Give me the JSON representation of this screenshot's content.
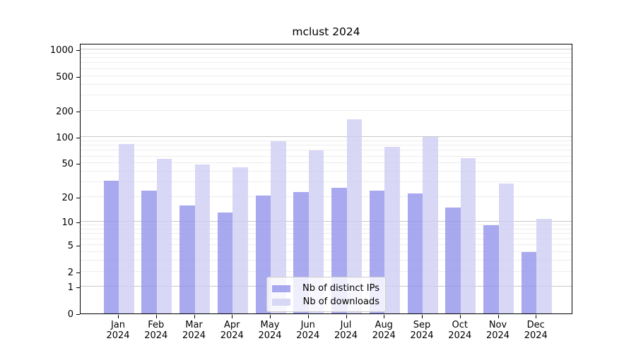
{
  "chart_data": {
    "type": "bar",
    "title": "mclust 2024",
    "categories": [
      "Jan 2024",
      "Feb 2024",
      "Mar 2024",
      "Apr 2024",
      "May 2024",
      "Jun 2024",
      "Jul 2024",
      "Aug 2024",
      "Sep 2024",
      "Oct 2024",
      "Nov 2024",
      "Dec 2024"
    ],
    "x_tick_month_labels": [
      "Jan",
      "Feb",
      "Mar",
      "Apr",
      "May",
      "Jun",
      "Jul",
      "Aug",
      "Sep",
      "Oct",
      "Nov",
      "Dec"
    ],
    "x_tick_year_label": "2024",
    "series": [
      {
        "name": "Nb of distinct IPs",
        "color": "#9494eb",
        "opacity": 0.8,
        "values": [
          31,
          24,
          16,
          13,
          21,
          23,
          26,
          24,
          22,
          15,
          9,
          4
        ]
      },
      {
        "name": "Nb of downloads",
        "color": "#cecef4",
        "opacity": 0.8,
        "values": [
          83,
          56,
          48,
          45,
          89,
          71,
          160,
          77,
          100,
          57,
          29,
          11
        ]
      }
    ],
    "y_ticks": [
      0,
      1,
      2,
      5,
      10,
      20,
      50,
      100,
      200,
      500,
      1000
    ],
    "y_scale": "log10(value+1)",
    "ylim": [
      0,
      1180
    ],
    "xlabel": "",
    "ylabel": "",
    "grid": "horizontal major #c8c8c8 + minor #ededed",
    "legend_position": "inside bottom-center",
    "bar_style": "paired bars per month, dark=distinct IPs (left), light=downloads (right)"
  }
}
